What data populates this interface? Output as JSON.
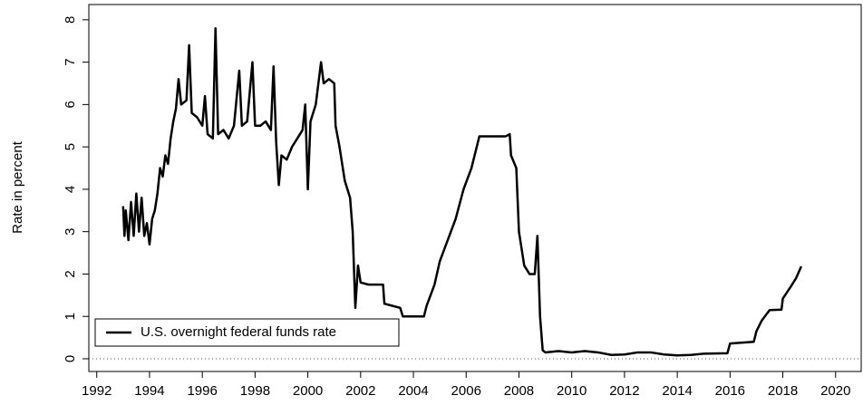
{
  "chart_data": {
    "type": "line",
    "y_label": "Rate in percent",
    "x": [
      1993.0,
      1993.05,
      1993.1,
      1993.2,
      1993.3,
      1993.4,
      1993.5,
      1993.6,
      1993.7,
      1993.8,
      1993.9,
      1994.0,
      1994.1,
      1994.2,
      1994.3,
      1994.4,
      1994.5,
      1994.6,
      1994.7,
      1994.8,
      1994.9,
      1995.0,
      1995.1,
      1995.2,
      1995.4,
      1995.5,
      1995.6,
      1995.8,
      1996.0,
      1996.1,
      1996.2,
      1996.4,
      1996.5,
      1996.6,
      1996.8,
      1997.0,
      1997.2,
      1997.4,
      1997.5,
      1997.7,
      1997.9,
      1998.0,
      1998.2,
      1998.4,
      1998.6,
      1998.7,
      1998.8,
      1998.9,
      1999.0,
      1999.2,
      1999.4,
      1999.6,
      1999.8,
      1999.9,
      2000.0,
      2000.1,
      2000.3,
      2000.4,
      2000.5,
      2000.6,
      2000.8,
      2001.0,
      2001.05,
      2001.2,
      2001.4,
      2001.6,
      2001.7,
      2001.8,
      2001.9,
      2002.0,
      2002.3,
      2002.6,
      2002.85,
      2002.9,
      2003.2,
      2003.5,
      2003.6,
      2004.0,
      2004.4,
      2004.5,
      2004.8,
      2005.0,
      2005.3,
      2005.6,
      2005.9,
      2006.2,
      2006.5,
      2007.0,
      2007.5,
      2007.65,
      2007.7,
      2007.9,
      2008.0,
      2008.2,
      2008.4,
      2008.6,
      2008.7,
      2008.8,
      2008.9,
      2009.0,
      2009.5,
      2010.0,
      2010.5,
      2011.0,
      2011.5,
      2012.0,
      2012.5,
      2013.0,
      2013.5,
      2014.0,
      2014.5,
      2015.0,
      2015.9,
      2016.0,
      2016.9,
      2017.0,
      2017.2,
      2017.5,
      2017.95,
      2018.0,
      2018.3,
      2018.5,
      2018.7
    ],
    "series": [
      {
        "name": "U.S. overnight federal funds rate",
        "color": "#000000",
        "values": [
          3.6,
          2.9,
          3.5,
          2.8,
          3.7,
          2.9,
          3.9,
          3.0,
          3.8,
          2.9,
          3.2,
          2.7,
          3.3,
          3.5,
          3.9,
          4.5,
          4.3,
          4.8,
          4.6,
          5.2,
          5.6,
          5.9,
          6.6,
          6.0,
          6.1,
          7.4,
          5.8,
          5.7,
          5.5,
          6.2,
          5.3,
          5.2,
          7.8,
          5.3,
          5.4,
          5.2,
          5.5,
          6.8,
          5.5,
          5.6,
          7.0,
          5.5,
          5.5,
          5.6,
          5.4,
          6.9,
          5.1,
          4.1,
          4.8,
          4.7,
          5.0,
          5.2,
          5.4,
          6.0,
          4.0,
          5.6,
          6.0,
          6.5,
          7.0,
          6.5,
          6.6,
          6.5,
          5.5,
          5.0,
          4.2,
          3.8,
          3.0,
          1.2,
          2.2,
          1.8,
          1.75,
          1.75,
          1.75,
          1.3,
          1.25,
          1.2,
          1.0,
          1.0,
          1.0,
          1.25,
          1.75,
          2.3,
          2.8,
          3.3,
          4.0,
          4.5,
          5.25,
          5.25,
          5.25,
          5.3,
          4.8,
          4.5,
          3.0,
          2.2,
          2.0,
          2.0,
          2.9,
          1.0,
          0.2,
          0.15,
          0.18,
          0.15,
          0.18,
          0.15,
          0.09,
          0.1,
          0.15,
          0.15,
          0.1,
          0.08,
          0.09,
          0.12,
          0.13,
          0.36,
          0.4,
          0.65,
          0.9,
          1.15,
          1.16,
          1.42,
          1.7,
          1.9,
          2.18
        ]
      }
    ],
    "xlim": [
      1991.7,
      2020.97
    ],
    "xticks": [
      1992,
      1994,
      1996,
      1998,
      2000,
      2002,
      2004,
      2006,
      2008,
      2010,
      2012,
      2014,
      2016,
      2018,
      2020
    ],
    "ylim": [
      -0.3,
      8.36
    ],
    "yticks": [
      0,
      1,
      2,
      3,
      4,
      5,
      6,
      7,
      8
    ],
    "zero_line": true,
    "legend": "bottom-left"
  }
}
